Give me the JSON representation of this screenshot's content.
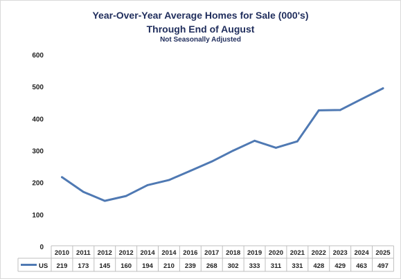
{
  "chart_data": {
    "type": "line",
    "title": "Year-Over-Year Average Homes for Sale (000's)",
    "subtitle": "Through End of August",
    "note": "Not Seasonally Adjusted",
    "categories": [
      "2010",
      "2011",
      "2012",
      "2012",
      "2014",
      "2014",
      "2016",
      "2017",
      "2018",
      "2019",
      "2020",
      "2021",
      "2022",
      "2023",
      "2024",
      "2025"
    ],
    "series": [
      {
        "name": "US",
        "values": [
          219,
          173,
          145,
          160,
          194,
          210,
          239,
          268,
          302,
          333,
          311,
          331,
          428,
          429,
          463,
          497
        ],
        "color": "#4f79b3"
      }
    ],
    "yticks": [
      "600",
      "500",
      "400",
      "300",
      "200",
      "100",
      "0"
    ],
    "ylim": [
      0,
      600
    ],
    "grid": false,
    "legend": "data-table"
  }
}
